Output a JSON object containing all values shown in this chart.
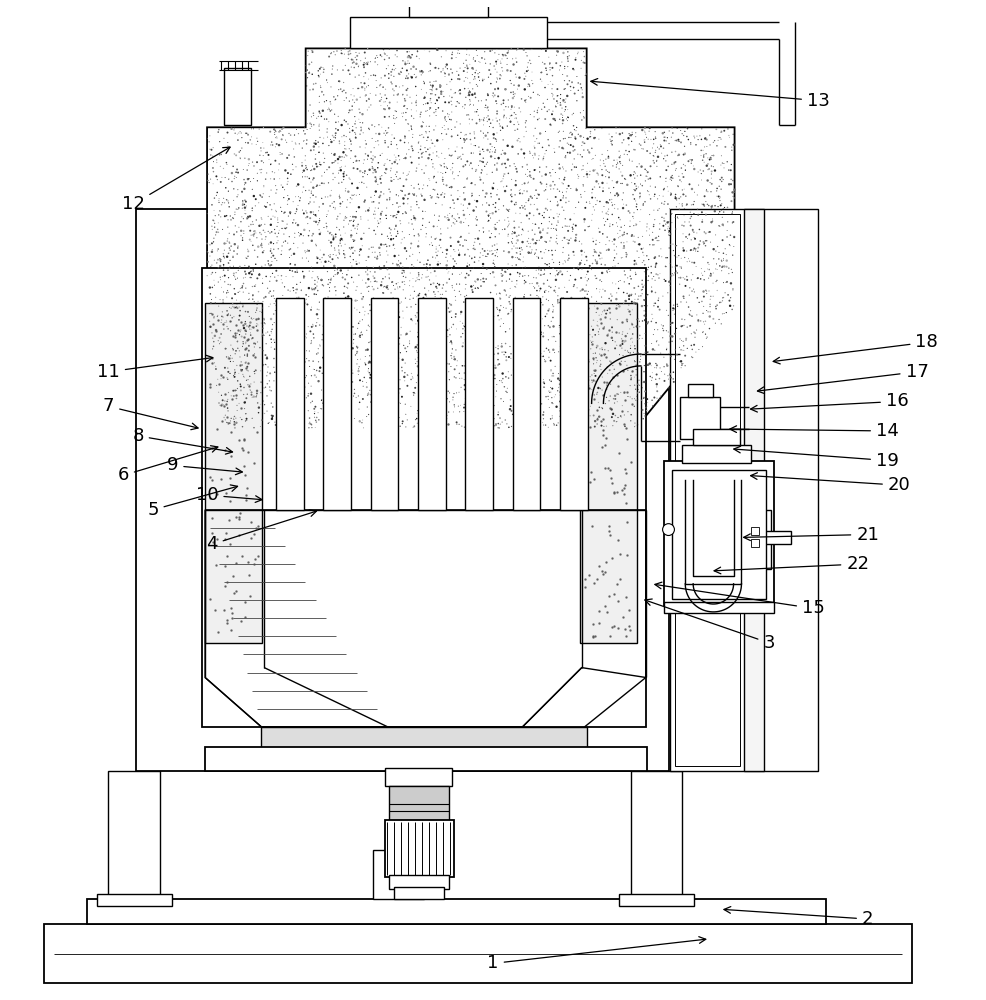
{
  "background_color": "#ffffff",
  "line_color": "#000000",
  "fig_width": 9.86,
  "fig_height": 10.0,
  "annotations": [
    [
      "1",
      [
        0.5,
        0.03
      ],
      [
        0.72,
        0.055
      ]
    ],
    [
      "2",
      [
        0.88,
        0.075
      ],
      [
        0.73,
        0.085
      ]
    ],
    [
      "3",
      [
        0.78,
        0.355
      ],
      [
        0.65,
        0.4
      ]
    ],
    [
      "4",
      [
        0.215,
        0.455
      ],
      [
        0.325,
        0.49
      ]
    ],
    [
      "5",
      [
        0.155,
        0.49
      ],
      [
        0.245,
        0.515
      ]
    ],
    [
      "6",
      [
        0.125,
        0.525
      ],
      [
        0.225,
        0.555
      ]
    ],
    [
      "7",
      [
        0.11,
        0.595
      ],
      [
        0.205,
        0.572
      ]
    ],
    [
      "8",
      [
        0.14,
        0.565
      ],
      [
        0.24,
        0.548
      ]
    ],
    [
      "9",
      [
        0.175,
        0.535
      ],
      [
        0.25,
        0.528
      ]
    ],
    [
      "10",
      [
        0.21,
        0.505
      ],
      [
        0.27,
        0.5
      ]
    ],
    [
      "11",
      [
        0.11,
        0.63
      ],
      [
        0.22,
        0.645
      ]
    ],
    [
      "12",
      [
        0.135,
        0.8
      ],
      [
        0.237,
        0.86
      ]
    ],
    [
      "13",
      [
        0.83,
        0.905
      ],
      [
        0.595,
        0.925
      ]
    ],
    [
      "14",
      [
        0.9,
        0.57
      ],
      [
        0.736,
        0.572
      ]
    ],
    [
      "15",
      [
        0.825,
        0.39
      ],
      [
        0.66,
        0.415
      ]
    ],
    [
      "16",
      [
        0.91,
        0.6
      ],
      [
        0.757,
        0.592
      ]
    ],
    [
      "17",
      [
        0.93,
        0.63
      ],
      [
        0.764,
        0.61
      ]
    ],
    [
      "18",
      [
        0.94,
        0.66
      ],
      [
        0.78,
        0.64
      ]
    ],
    [
      "19",
      [
        0.9,
        0.54
      ],
      [
        0.74,
        0.552
      ]
    ],
    [
      "20",
      [
        0.912,
        0.515
      ],
      [
        0.757,
        0.525
      ]
    ],
    [
      "21",
      [
        0.88,
        0.465
      ],
      [
        0.75,
        0.462
      ]
    ],
    [
      "22",
      [
        0.87,
        0.435
      ],
      [
        0.72,
        0.428
      ]
    ]
  ]
}
